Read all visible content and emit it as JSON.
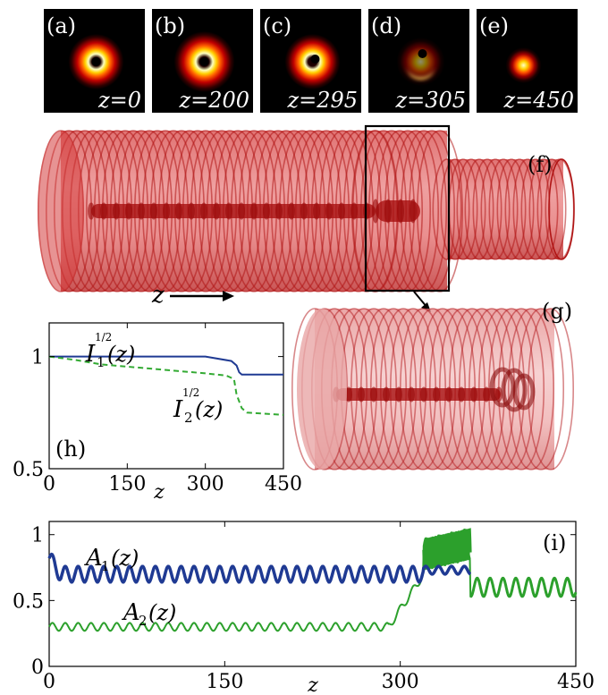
{
  "panels_top": [
    {
      "letter": "(a)",
      "z": "z=0",
      "type": "ring",
      "dot": "center"
    },
    {
      "letter": "(b)",
      "z": "z=200",
      "type": "ring",
      "dot": "center"
    },
    {
      "letter": "(c)",
      "z": "z=295",
      "type": "ring",
      "dot": "offset"
    },
    {
      "letter": "(d)",
      "z": "z=305",
      "type": "crescent",
      "dot": "offset"
    },
    {
      "letter": "(e)",
      "z": "z=450",
      "type": "spot",
      "dot": "none"
    }
  ],
  "panel_f": {
    "letter": "(f)",
    "axis_label": "z"
  },
  "panel_g": {
    "letter": "(g)"
  },
  "panel_h": {
    "letter": "(h)",
    "curve1_label_main": "I",
    "curve1_label_sub": "1",
    "curve1_label_sup": "1/2",
    "curve1_label_arg": "(z)",
    "curve2_label_main": "I",
    "curve2_label_sub": "2",
    "curve2_label_sup": "1/2",
    "curve2_label_arg": "(z)",
    "xlabel": "z",
    "xticks": [
      "0",
      "150",
      "300",
      "450"
    ],
    "yticks": [
      "1",
      "0.5"
    ]
  },
  "panel_i": {
    "letter": "(i)",
    "curve1_label_main": "A",
    "curve1_label_sub": "1",
    "curve1_label_arg": "(z)",
    "curve2_label_main": "A",
    "curve2_label_sub": "2",
    "curve2_label_arg": "(z)",
    "xlabel": "z",
    "xticks": [
      "0",
      "150",
      "300",
      "450"
    ],
    "yticks": [
      "1",
      "0.5",
      "0"
    ]
  },
  "chart_data": [
    {
      "type": "line",
      "panel": "(h)",
      "xlim": [
        0,
        450
      ],
      "ylim": [
        0.5,
        1.15
      ],
      "series": [
        {
          "name": "I1^(1/2)(z)",
          "color": "#1f3a93",
          "style": "solid",
          "x": [
            0,
            100,
            200,
            300,
            350,
            360,
            365,
            370,
            450
          ],
          "y": [
            1.0,
            1.0,
            1.0,
            1.0,
            0.98,
            0.96,
            0.93,
            0.92,
            0.92
          ]
        },
        {
          "name": "I2^(1/2)(z)",
          "color": "#33aa33",
          "style": "dashed",
          "x": [
            0,
            50,
            100,
            150,
            200,
            250,
            300,
            340,
            355,
            360,
            370,
            380,
            450
          ],
          "y": [
            1.0,
            0.985,
            0.965,
            0.955,
            0.945,
            0.935,
            0.925,
            0.915,
            0.9,
            0.83,
            0.77,
            0.75,
            0.74
          ]
        }
      ]
    },
    {
      "type": "line",
      "panel": "(i)",
      "xlim": [
        0,
        450
      ],
      "ylim": [
        0,
        1.1
      ],
      "series": [
        {
          "name": "A1(z)",
          "color": "#1f3a93",
          "style": "solid",
          "mean_segments": [
            [
              0,
              320,
              0.7
            ],
            [
              320,
              345,
              0.72
            ],
            [
              345,
              360,
              0.74
            ]
          ],
          "oscillation_amplitude": 0.06,
          "oscillation_period": 11
        },
        {
          "name": "A2(z)",
          "color": "#2ca02c",
          "style": "solid",
          "baseline_segments": [
            [
              0,
              290,
              0.3
            ],
            [
              290,
              320,
              0.45
            ],
            [
              320,
              360,
              0.85
            ],
            [
              360,
              450,
              0.6
            ]
          ],
          "oscillation_amplitude": 0.03,
          "oscillation_period": 11
        }
      ]
    }
  ]
}
